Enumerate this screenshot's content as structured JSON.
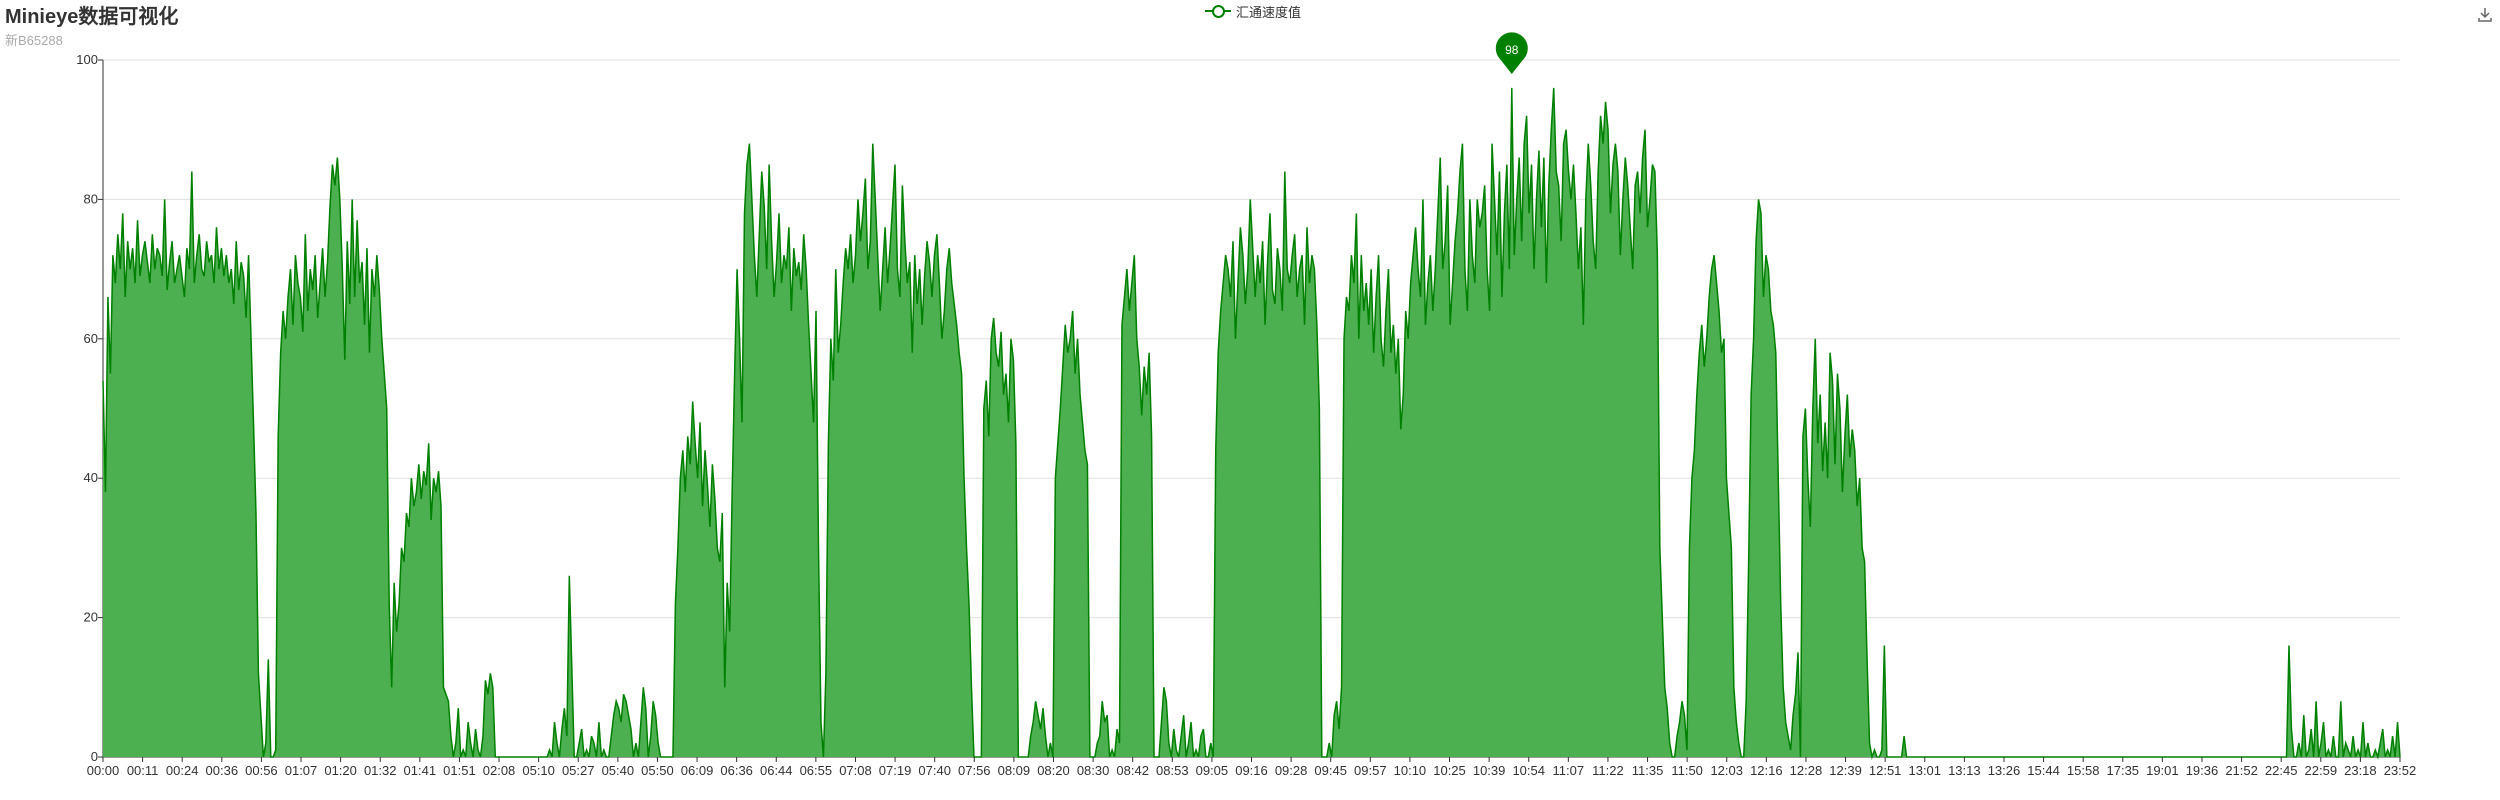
{
  "header": {
    "title": "Minieye数据可视化",
    "subtitle": "新B65288"
  },
  "colors": {
    "series": "#008000",
    "area": "#4caf50",
    "grid": "#e0e0e0",
    "axis": "#333333"
  },
  "icons": {
    "download": "download-icon"
  },
  "chart_data": {
    "type": "area",
    "title": "Minieye数据可视化",
    "subtitle": "新B65288",
    "xlabel": "",
    "ylabel": "",
    "ylim": [
      0,
      100
    ],
    "y_ticks": [
      "0",
      "20",
      "40",
      "60",
      "80",
      "100"
    ],
    "grid": true,
    "legend": {
      "position": "top-center",
      "entries": [
        "汇通速度值"
      ]
    },
    "x_tick_labels": [
      "00:00",
      "00:11",
      "00:24",
      "00:36",
      "00:56",
      "01:07",
      "01:20",
      "01:32",
      "01:41",
      "01:51",
      "02:08",
      "05:10",
      "05:27",
      "05:40",
      "05:50",
      "06:09",
      "06:36",
      "06:44",
      "06:55",
      "07:08",
      "07:19",
      "07:40",
      "07:56",
      "08:09",
      "08:20",
      "08:30",
      "08:42",
      "08:53",
      "09:05",
      "09:16",
      "09:28",
      "09:45",
      "09:57",
      "10:10",
      "10:25",
      "10:39",
      "10:54",
      "11:07",
      "11:22",
      "11:35",
      "11:50",
      "12:03",
      "12:16",
      "12:28",
      "12:39",
      "12:51",
      "13:01",
      "13:13",
      "13:26",
      "15:44",
      "15:58",
      "17:35",
      "19:01",
      "19:36",
      "21:52",
      "22:45",
      "22:59",
      "23:18",
      "23:52"
    ],
    "series": [
      {
        "name": "汇通速度值",
        "x_step_note": "",
        "values": [
          54,
          38,
          66,
          55,
          72,
          68,
          75,
          70,
          78,
          66,
          74,
          70,
          73,
          68,
          77,
          69,
          72,
          74,
          71,
          68,
          75,
          70,
          73,
          72,
          69,
          80,
          67,
          71,
          74,
          68,
          70,
          72,
          69,
          66,
          73,
          70,
          84,
          68,
          72,
          75,
          70,
          69,
          74,
          71,
          72,
          68,
          76,
          70,
          73,
          69,
          72,
          68,
          70,
          65,
          74,
          67,
          71,
          69,
          63,
          72,
          60,
          48,
          35,
          12,
          6,
          0,
          2,
          14,
          0,
          0,
          1,
          46,
          58,
          64,
          60,
          66,
          70,
          62,
          72,
          68,
          66,
          61,
          75,
          64,
          70,
          67,
          72,
          63,
          68,
          73,
          66,
          71,
          79,
          85,
          82,
          86,
          80,
          70,
          57,
          74,
          65,
          80,
          66,
          77,
          68,
          71,
          62,
          73,
          58,
          70,
          66,
          72,
          67,
          60,
          55,
          50,
          22,
          10,
          25,
          18,
          22,
          30,
          28,
          35,
          33,
          40,
          36,
          38,
          42,
          37,
          41,
          39,
          45,
          34,
          40,
          38,
          41,
          36,
          10,
          9,
          8,
          3,
          0,
          2,
          7,
          0,
          1,
          0,
          5,
          2,
          0,
          4,
          1,
          0,
          3,
          11,
          9,
          12,
          10,
          0,
          0,
          0,
          0,
          0,
          0,
          0,
          0,
          0,
          0,
          0,
          0,
          0,
          0,
          0,
          0,
          0,
          0,
          0,
          0,
          0,
          0,
          1,
          0,
          5,
          2,
          0,
          4,
          7,
          3,
          26,
          13,
          0,
          0,
          2,
          4,
          0,
          1,
          0,
          3,
          2,
          0,
          5,
          0,
          1,
          0,
          0,
          3,
          6,
          8,
          7,
          5,
          9,
          8,
          6,
          4,
          0,
          2,
          0,
          5,
          10,
          7,
          0,
          3,
          8,
          6,
          2,
          0,
          0,
          0,
          0,
          0,
          0,
          22,
          30,
          40,
          44,
          38,
          46,
          42,
          51,
          45,
          40,
          48,
          36,
          44,
          39,
          33,
          42,
          37,
          30,
          28,
          35,
          10,
          25,
          18,
          38,
          55,
          70,
          60,
          48,
          78,
          85,
          88,
          80,
          72,
          66,
          75,
          84,
          79,
          70,
          85,
          74,
          66,
          71,
          78,
          68,
          72,
          70,
          76,
          64,
          73,
          69,
          71,
          67,
          75,
          70,
          62,
          55,
          48,
          64,
          30,
          5,
          0,
          12,
          45,
          60,
          54,
          70,
          58,
          62,
          68,
          73,
          70,
          75,
          68,
          72,
          80,
          74,
          78,
          83,
          70,
          74,
          88,
          80,
          72,
          64,
          70,
          76,
          68,
          73,
          79,
          85,
          70,
          66,
          82,
          74,
          68,
          71,
          58,
          72,
          65,
          70,
          62,
          69,
          74,
          71,
          66,
          72,
          75,
          68,
          60,
          64,
          70,
          73,
          68,
          65,
          62,
          58,
          55,
          40,
          30,
          22,
          10,
          0,
          0,
          0,
          0,
          50,
          54,
          46,
          60,
          63,
          58,
          56,
          61,
          52,
          55,
          48,
          60,
          57,
          45,
          0,
          0,
          0,
          0,
          0,
          3,
          5,
          8,
          6,
          4,
          7,
          3,
          0,
          2,
          0,
          40,
          45,
          50,
          56,
          62,
          58,
          60,
          64,
          55,
          60,
          52,
          48,
          44,
          42,
          0,
          0,
          0,
          2,
          3,
          8,
          5,
          6,
          0,
          1,
          0,
          4,
          2,
          62,
          66,
          70,
          64,
          68,
          72,
          60,
          56,
          49,
          56,
          52,
          58,
          46,
          0,
          0,
          0,
          5,
          10,
          8,
          2,
          0,
          4,
          1,
          0,
          3,
          6,
          0,
          2,
          5,
          0,
          1,
          0,
          3,
          4,
          0,
          0,
          2,
          0,
          44,
          58,
          64,
          68,
          72,
          70,
          66,
          74,
          60,
          68,
          76,
          72,
          65,
          70,
          80,
          73,
          66,
          72,
          68,
          74,
          62,
          71,
          78,
          67,
          65,
          73,
          70,
          64,
          84,
          70,
          68,
          72,
          75,
          66,
          70,
          72,
          62,
          76,
          68,
          72,
          70,
          62,
          50,
          0,
          0,
          0,
          2,
          0,
          6,
          8,
          4,
          10,
          60,
          66,
          64,
          72,
          68,
          78,
          60,
          72,
          64,
          68,
          62,
          70,
          58,
          66,
          72,
          60,
          56,
          64,
          70,
          58,
          62,
          55,
          60,
          47,
          52,
          64,
          60,
          68,
          72,
          76,
          70,
          66,
          80,
          62,
          68,
          72,
          64,
          70,
          78,
          86,
          70,
          74,
          82,
          62,
          68,
          74,
          78,
          84,
          88,
          70,
          64,
          80,
          72,
          68,
          80,
          76,
          78,
          82,
          70,
          64,
          88,
          80,
          72,
          84,
          66,
          78,
          85,
          70,
          96,
          72,
          80,
          86,
          74,
          88,
          92,
          78,
          85,
          70,
          80,
          87,
          76,
          86,
          68,
          82,
          90,
          96,
          84,
          82,
          74,
          88,
          90,
          84,
          80,
          85,
          78,
          70,
          76,
          62,
          80,
          88,
          82,
          74,
          70,
          84,
          92,
          88,
          94,
          90,
          78,
          85,
          88,
          84,
          72,
          80,
          86,
          82,
          76,
          70,
          82,
          84,
          78,
          86,
          90,
          76,
          80,
          85,
          84,
          72,
          30,
          20,
          10,
          7,
          2,
          0,
          0,
          3,
          5,
          8,
          6,
          1,
          30,
          40,
          44,
          52,
          58,
          62,
          56,
          60,
          66,
          70,
          72,
          68,
          64,
          58,
          60,
          40,
          35,
          30,
          10,
          5,
          2,
          0,
          0,
          8,
          28,
          52,
          60,
          74,
          80,
          78,
          66,
          72,
          70,
          64,
          62,
          58,
          40,
          22,
          10,
          5,
          3,
          1,
          6,
          9,
          15,
          0,
          46,
          50,
          40,
          33,
          50,
          60,
          45,
          52,
          41,
          48,
          40,
          58,
          54,
          42,
          55,
          50,
          38,
          46,
          52,
          43,
          47,
          44,
          36,
          40,
          30,
          28,
          14,
          2,
          0,
          1,
          0,
          0,
          1,
          16,
          0,
          0,
          0,
          0,
          0,
          0,
          0,
          3,
          0,
          0,
          0,
          0,
          0,
          0,
          0,
          0,
          0,
          0,
          0,
          0,
          0,
          0,
          0,
          0,
          0,
          0,
          0,
          0,
          0,
          0,
          0,
          0,
          0,
          0,
          0,
          0,
          0,
          0,
          0,
          0,
          0,
          0,
          0,
          0,
          0,
          0,
          0,
          0,
          0,
          0,
          0,
          0,
          0,
          0,
          0,
          0,
          0,
          0,
          0,
          0,
          0,
          0,
          0,
          0,
          0,
          0,
          0,
          0,
          0,
          0,
          0,
          0,
          0,
          0,
          0,
          0,
          0,
          0,
          0,
          0,
          0,
          0,
          0,
          0,
          0,
          0,
          0,
          0,
          0,
          0,
          0,
          0,
          0,
          0,
          0,
          0,
          0,
          0,
          0,
          0,
          0,
          0,
          0,
          0,
          0,
          0,
          0,
          0,
          0,
          0,
          0,
          0,
          0,
          0,
          0,
          0,
          0,
          0,
          0,
          0,
          0,
          0,
          0,
          0,
          0,
          0,
          0,
          0,
          0,
          0,
          0,
          0,
          0,
          0,
          0,
          0,
          0,
          0,
          0,
          0,
          0,
          0,
          0,
          0,
          0,
          0,
          0,
          0,
          0,
          0,
          0,
          0,
          0,
          0,
          0,
          0,
          0,
          0,
          0,
          0,
          0,
          0,
          0,
          16,
          4,
          0,
          0,
          2,
          0,
          6,
          0,
          1,
          4,
          0,
          8,
          0,
          2,
          5,
          0,
          1,
          0,
          3,
          0,
          0,
          8,
          0,
          2,
          1,
          0,
          3,
          0,
          1,
          0,
          5,
          0,
          2,
          0,
          0,
          1,
          0,
          2,
          4,
          0,
          1,
          0,
          3,
          0,
          5,
          0
        ]
      }
    ],
    "max_marker": {
      "label": "98",
      "value": 98
    }
  }
}
